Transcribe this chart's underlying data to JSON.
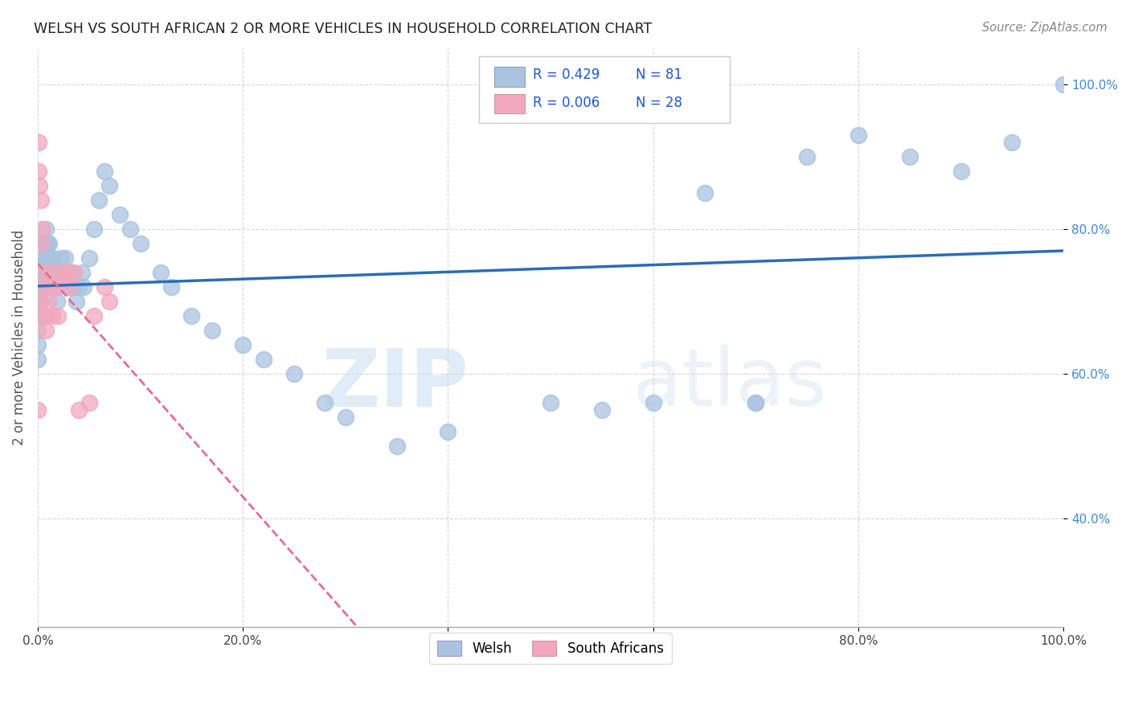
{
  "title": "WELSH VS SOUTH AFRICAN 2 OR MORE VEHICLES IN HOUSEHOLD CORRELATION CHART",
  "source": "Source: ZipAtlas.com",
  "ylabel": "2 or more Vehicles in Household",
  "legend_welsh": "Welsh",
  "legend_sa": "South Africans",
  "R_welsh": 0.429,
  "N_welsh": 81,
  "R_sa": 0.006,
  "N_sa": 28,
  "welsh_color": "#aac4e0",
  "sa_color": "#f2a8bc",
  "trend_welsh_color": "#2b6cb8",
  "trend_sa_color": "#e07090",
  "watermark_zip": "ZIP",
  "watermark_atlas": "atlas",
  "welsh_x": [
    0.0,
    0.0,
    0.0,
    0.0,
    0.001,
    0.001,
    0.002,
    0.002,
    0.003,
    0.003,
    0.003,
    0.004,
    0.004,
    0.005,
    0.005,
    0.005,
    0.006,
    0.006,
    0.007,
    0.007,
    0.008,
    0.008,
    0.009,
    0.009,
    0.01,
    0.01,
    0.011,
    0.011,
    0.012,
    0.012,
    0.013,
    0.014,
    0.015,
    0.016,
    0.017,
    0.018,
    0.019,
    0.02,
    0.022,
    0.023,
    0.025,
    0.027,
    0.028,
    0.03,
    0.032,
    0.035,
    0.038,
    0.04,
    0.043,
    0.045,
    0.05,
    0.055,
    0.06,
    0.065,
    0.07,
    0.08,
    0.09,
    0.1,
    0.12,
    0.13,
    0.15,
    0.17,
    0.2,
    0.22,
    0.25,
    0.28,
    0.3,
    0.35,
    0.4,
    0.5,
    0.6,
    0.65,
    0.7,
    0.75,
    0.8,
    0.85,
    0.9,
    0.95,
    1.0,
    0.55,
    0.7
  ],
  "welsh_y": [
    0.68,
    0.66,
    0.64,
    0.62,
    0.7,
    0.68,
    0.72,
    0.7,
    0.74,
    0.72,
    0.7,
    0.74,
    0.72,
    0.76,
    0.74,
    0.72,
    0.76,
    0.74,
    0.78,
    0.76,
    0.8,
    0.78,
    0.76,
    0.74,
    0.78,
    0.76,
    0.78,
    0.76,
    0.74,
    0.72,
    0.74,
    0.76,
    0.74,
    0.72,
    0.74,
    0.72,
    0.7,
    0.72,
    0.74,
    0.76,
    0.74,
    0.76,
    0.74,
    0.72,
    0.74,
    0.72,
    0.7,
    0.72,
    0.74,
    0.72,
    0.76,
    0.8,
    0.84,
    0.88,
    0.86,
    0.82,
    0.8,
    0.78,
    0.74,
    0.72,
    0.68,
    0.66,
    0.64,
    0.62,
    0.6,
    0.56,
    0.54,
    0.5,
    0.52,
    0.56,
    0.56,
    0.85,
    0.56,
    0.9,
    0.93,
    0.9,
    0.88,
    0.92,
    1.0,
    0.55,
    0.56
  ],
  "sa_x": [
    0.0,
    0.0,
    0.001,
    0.001,
    0.002,
    0.003,
    0.003,
    0.004,
    0.005,
    0.006,
    0.007,
    0.008,
    0.009,
    0.01,
    0.012,
    0.014,
    0.016,
    0.018,
    0.02,
    0.025,
    0.028,
    0.03,
    0.035,
    0.04,
    0.05,
    0.055,
    0.065,
    0.07
  ],
  "sa_y": [
    0.7,
    0.55,
    0.92,
    0.88,
    0.86,
    0.84,
    0.78,
    0.8,
    0.74,
    0.68,
    0.68,
    0.66,
    0.72,
    0.7,
    0.72,
    0.68,
    0.74,
    0.72,
    0.68,
    0.74,
    0.74,
    0.72,
    0.74,
    0.55,
    0.56,
    0.68,
    0.72,
    0.7
  ],
  "xlim": [
    0,
    1
  ],
  "ylim": [
    0.25,
    1.05
  ],
  "yticks": [
    0.4,
    0.6,
    0.8,
    1.0
  ],
  "ytick_labels": [
    "40.0%",
    "60.0%",
    "80.0%",
    "100.0%"
  ],
  "xticks": [
    0,
    0.2,
    0.4,
    0.6,
    0.8,
    1.0
  ],
  "xtick_labels": [
    "0.0%",
    "20.0%",
    "40.0%",
    "60.0%",
    "80.0%",
    "100.0%"
  ]
}
